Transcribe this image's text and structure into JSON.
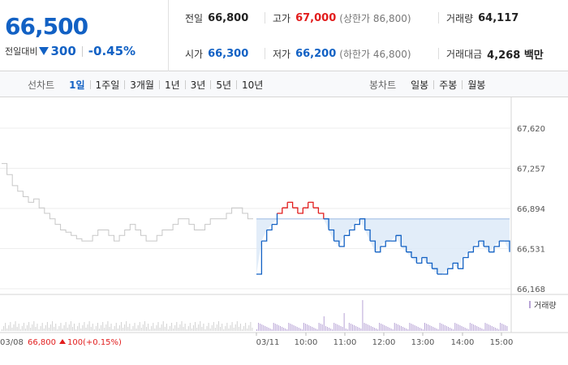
{
  "quote": {
    "current_price": "66,500",
    "change_label": "전일대비",
    "change_value": "300",
    "change_rate": "-0.45%"
  },
  "info": {
    "prev_close": {
      "label": "전일",
      "value": "66,800"
    },
    "high": {
      "label": "고가",
      "value": "67,000",
      "sub": "(상한가 86,800)"
    },
    "volume": {
      "label": "거래량",
      "value": "64,117"
    },
    "open": {
      "label": "시가",
      "value": "66,300"
    },
    "low": {
      "label": "저가",
      "value": "66,200",
      "sub": "(하한가 46,800)"
    },
    "amount": {
      "label": "거래대금",
      "value": "4,268 백만"
    }
  },
  "line_tabs": {
    "title": "선차트",
    "items": [
      "1일",
      "1주일",
      "3개월",
      "1년",
      "3년",
      "5년",
      "10년"
    ],
    "active": 0
  },
  "candle_tabs": {
    "title": "봉차트",
    "items": [
      "일봉",
      "주봉",
      "월봉"
    ]
  },
  "chart_data": {
    "type": "line",
    "y_ticks": [
      "67,620",
      "67,257",
      "66,894",
      "66,531",
      "66,168"
    ],
    "ylim": [
      66168,
      67620
    ],
    "prev_close": 66800,
    "x_ticks": [
      "03/11",
      "10:00",
      "11:00",
      "12:00",
      "13:00",
      "14:00",
      "15:00"
    ],
    "prev_day": {
      "date": "03/08",
      "close": "66,800",
      "change": "100",
      "rate": "(+0.15%)"
    },
    "volume_legend": "거래량",
    "colors": {
      "up": "#e21d1d",
      "down": "#1261c4",
      "prev_day": "#c7c7c7",
      "fill": "#dbe8f8",
      "volume": "#b8a4d6"
    },
    "prev_day_prices": [
      67300,
      67200,
      67100,
      67050,
      67000,
      66950,
      66980,
      66900,
      66850,
      66800,
      66750,
      66700,
      66680,
      66650,
      66620,
      66600,
      66600,
      66650,
      66700,
      66700,
      66650,
      66600,
      66650,
      66700,
      66750,
      66700,
      66650,
      66600,
      66600,
      66650,
      66700,
      66700,
      66750,
      66800,
      66800,
      66750,
      66700,
      66700,
      66750,
      66800,
      66800,
      66800,
      66850,
      66900,
      66900,
      66850,
      66800,
      66800
    ],
    "today_prices": [
      66300,
      66600,
      66700,
      66750,
      66850,
      66900,
      66950,
      66900,
      66850,
      66900,
      66950,
      66900,
      66850,
      66800,
      66700,
      66600,
      66550,
      66650,
      66700,
      66750,
      66800,
      66700,
      66600,
      66500,
      66550,
      66600,
      66600,
      66650,
      66550,
      66500,
      66450,
      66400,
      66450,
      66400,
      66350,
      66300,
      66300,
      66350,
      66400,
      66350,
      66450,
      66500,
      66550,
      66600,
      66550,
      66500,
      66550,
      66600,
      66600,
      66500
    ]
  }
}
